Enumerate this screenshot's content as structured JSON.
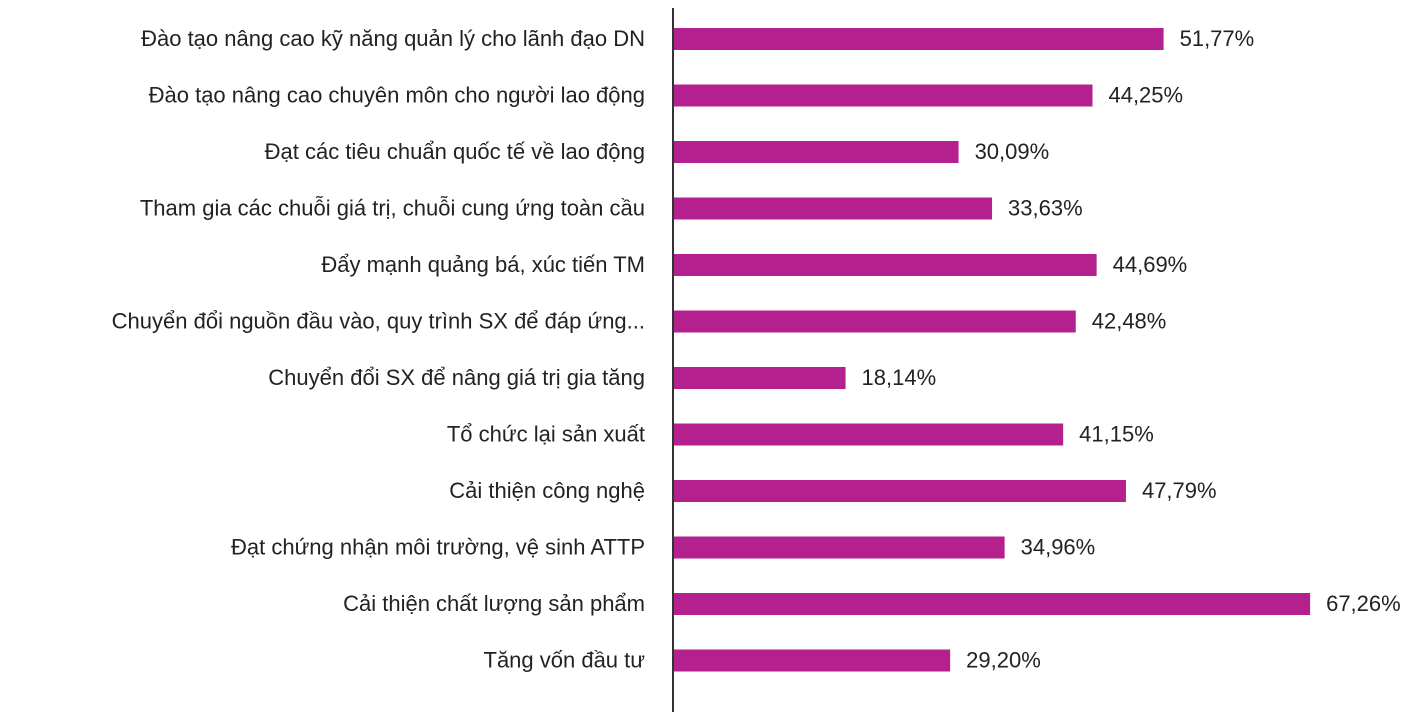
{
  "chart_data": {
    "type": "bar",
    "orientation": "horizontal",
    "categories": [
      "Đào tạo nâng cao kỹ năng quản lý cho lãnh đạo DN",
      "Đào tạo nâng cao chuyên môn cho người lao động",
      "Đạt các tiêu chuẩn quốc tế về lao động",
      "Tham gia các chuỗi giá trị, chuỗi cung ứng toàn cầu",
      "Đẩy mạnh quảng bá, xúc tiến TM",
      "Chuyển đổi nguồn đầu vào, quy trình SX để đáp ứng...",
      "Chuyển đổi SX để nâng giá trị gia tăng",
      "Tổ chức lại sản xuất",
      "Cải thiện công nghệ",
      "Đạt chứng nhận môi trường, vệ sinh ATTP",
      "Cải thiện chất lượng sản phẩm",
      "Tăng vốn đầu tư"
    ],
    "values": [
      51.77,
      44.25,
      30.09,
      33.63,
      44.69,
      42.48,
      18.14,
      41.15,
      47.79,
      34.96,
      67.26,
      29.2
    ],
    "value_labels": [
      "51,77%",
      "44,25%",
      "30,09%",
      "33,63%",
      "44,69%",
      "42,48%",
      "18,14%",
      "41,15%",
      "47,79%",
      "34,96%",
      "67,26%",
      "29,20%"
    ],
    "color": "#b5208f",
    "xlim": [
      0,
      70
    ]
  }
}
